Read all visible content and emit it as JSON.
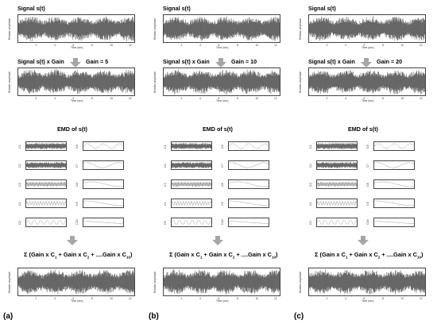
{
  "columns": [
    {
      "label": "(a)",
      "gain_text": "Gain = 5"
    },
    {
      "label": "(b)",
      "gain_text": "Gain = 10"
    },
    {
      "label": "(c)",
      "gain_text": "Gain = 20"
    }
  ],
  "titles": {
    "signal": "Signal s(t)",
    "signal_gain": "Signal s(t) x Gain",
    "emd": "EMD of s(t)"
  },
  "axes": {
    "ylabel": "Relative amplitude",
    "xlabel": "Time (sec)",
    "xticks": [
      "2",
      "4",
      "6",
      "8",
      "10",
      "12"
    ]
  },
  "imf_left": [
    "C1",
    "C2",
    "C3",
    "C4",
    "C5"
  ],
  "imf_right": [
    "C6",
    "C7",
    "C8",
    "C9",
    "C10"
  ],
  "sum_formula": {
    "prefix": "Σ (Gain x C",
    "s1": "1",
    "mid1": " + Gain x C",
    "s2": "2",
    "mid2": " + ....Gain x C",
    "s3": "10",
    "suffix": ")"
  },
  "colors": {
    "signal": "#555555",
    "frame": "#444444",
    "arrow": "#a6a6a6"
  }
}
